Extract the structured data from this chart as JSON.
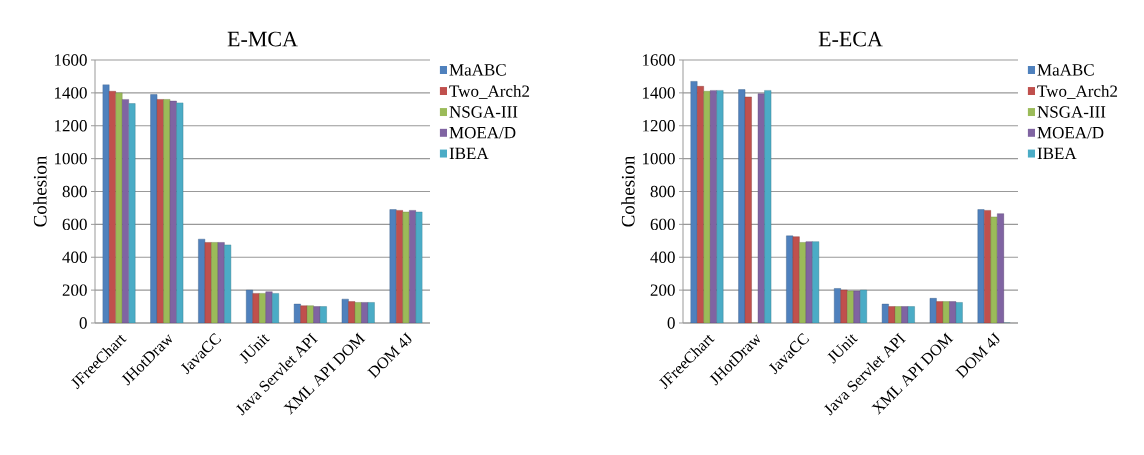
{
  "chart_data": [
    {
      "type": "bar",
      "title": "E-MCA",
      "ylabel": "Cohesion",
      "categories": [
        "JFreeChart",
        "JHotDraw",
        "JavaCC",
        "JUnit",
        "Java Servlet API",
        "XML API DOM",
        "DOM 4J"
      ],
      "series": [
        {
          "name": "MaABC",
          "color": "#4f81bd",
          "values": [
            1450,
            1390,
            510,
            200,
            115,
            145,
            690
          ]
        },
        {
          "name": "Two_Arch2",
          "color": "#c0504d",
          "values": [
            1410,
            1360,
            490,
            180,
            105,
            130,
            685
          ]
        },
        {
          "name": "NSGA-III",
          "color": "#9bbb59",
          "values": [
            1400,
            1360,
            490,
            180,
            105,
            125,
            675
          ]
        },
        {
          "name": "MOEA/D",
          "color": "#8064a2",
          "values": [
            1360,
            1350,
            490,
            190,
            100,
            125,
            685
          ]
        },
        {
          "name": "IBEA",
          "color": "#4bacc6",
          "values": [
            1335,
            1340,
            475,
            180,
            100,
            125,
            675
          ]
        }
      ],
      "ylim": [
        0,
        1600
      ],
      "yticks": [
        0,
        200,
        400,
        600,
        800,
        1000,
        1200,
        1400,
        1600
      ],
      "grid": "y",
      "legend": "top right"
    },
    {
      "type": "bar",
      "title": "E-ECA",
      "ylabel": "Cohesion",
      "categories": [
        "JFreeChart",
        "JHotDraw",
        "JavaCC",
        "JUnit",
        "Java Servlet API",
        "XML API DOM",
        "DOM 4J"
      ],
      "series": [
        {
          "name": "MaABC",
          "color": "#4f81bd",
          "values": [
            1470,
            1420,
            530,
            210,
            115,
            150,
            690
          ]
        },
        {
          "name": "Two_Arch2",
          "color": "#c0504d",
          "values": [
            1440,
            1375,
            525,
            200,
            100,
            130,
            685
          ]
        },
        {
          "name": "NSGA-III",
          "color": "#9bbb59",
          "values": [
            1410,
            0,
            490,
            195,
            100,
            130,
            645
          ]
        },
        {
          "name": "MOEA/D",
          "color": "#8064a2",
          "values": [
            1415,
            1395,
            495,
            195,
            100,
            130,
            665
          ]
        },
        {
          "name": "IBEA",
          "color": "#4bacc6",
          "values": [
            1415,
            1415,
            495,
            200,
            100,
            125,
            0
          ]
        }
      ],
      "ylim": [
        0,
        1600
      ],
      "yticks": [
        0,
        200,
        400,
        600,
        800,
        1000,
        1200,
        1400,
        1600
      ],
      "grid": "y",
      "legend": "top right"
    }
  ]
}
